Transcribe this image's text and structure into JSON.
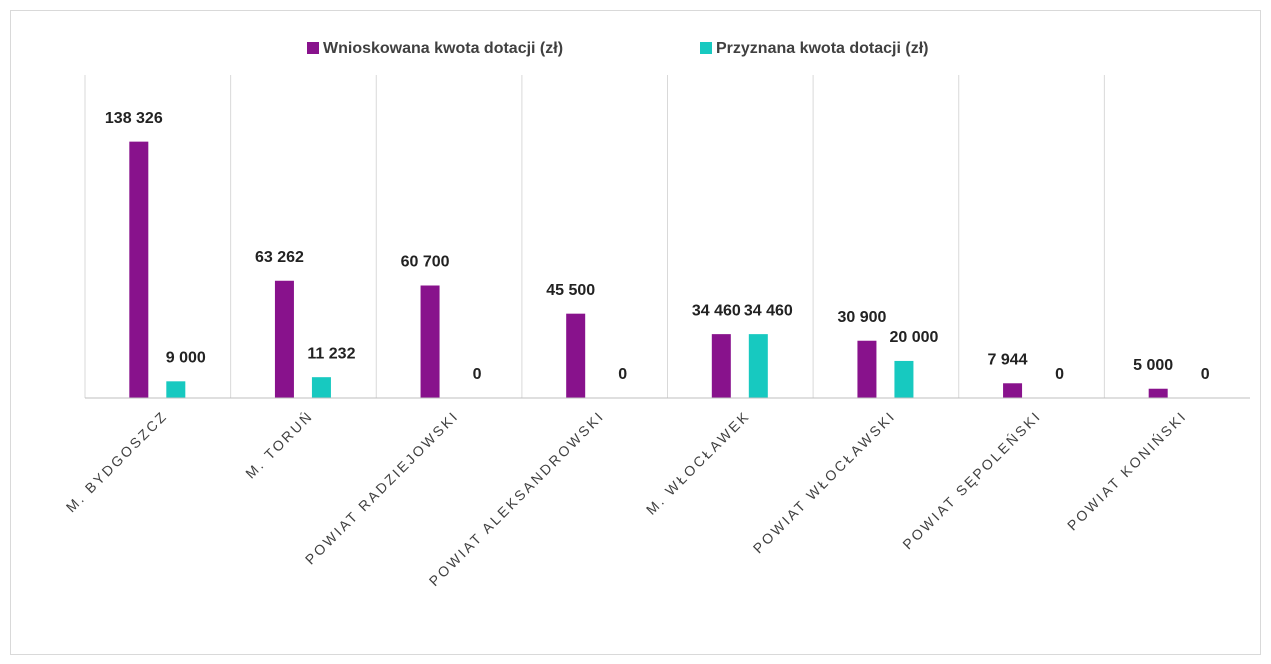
{
  "chart_data": {
    "type": "bar",
    "categories": [
      "M. BYDGOSZCZ",
      "M. TORUŃ",
      "POWIAT RADZIEJOWSKI",
      "POWIAT ALEKSANDROWSKI",
      "M. WŁOCŁAWEK",
      "POWIAT WŁOCŁAWSKI",
      "POWIAT SĘPOLEŃSKI",
      "POWIAT KONIŃSKI"
    ],
    "series": [
      {
        "name": "Wnioskowana kwota dotacji (zł)",
        "color": "#88128c",
        "values": [
          138326,
          63262,
          60700,
          45500,
          34460,
          30900,
          7944,
          5000
        ],
        "value_labels": [
          "138 326",
          "63 262",
          "60 700",
          "45 500",
          "34 460",
          "30 900",
          "7 944",
          "5 000"
        ]
      },
      {
        "name": "Przyznana kwota dotacji (zł)",
        "color": "#17c9c0",
        "values": [
          9000,
          11232,
          0,
          0,
          34460,
          20000,
          0,
          0
        ],
        "value_labels": [
          "9 000",
          "11 232",
          "0",
          "0",
          "34 460",
          "20 000",
          "0",
          "0"
        ]
      }
    ],
    "ylim": [
      0,
      150000
    ],
    "legend": "top"
  }
}
